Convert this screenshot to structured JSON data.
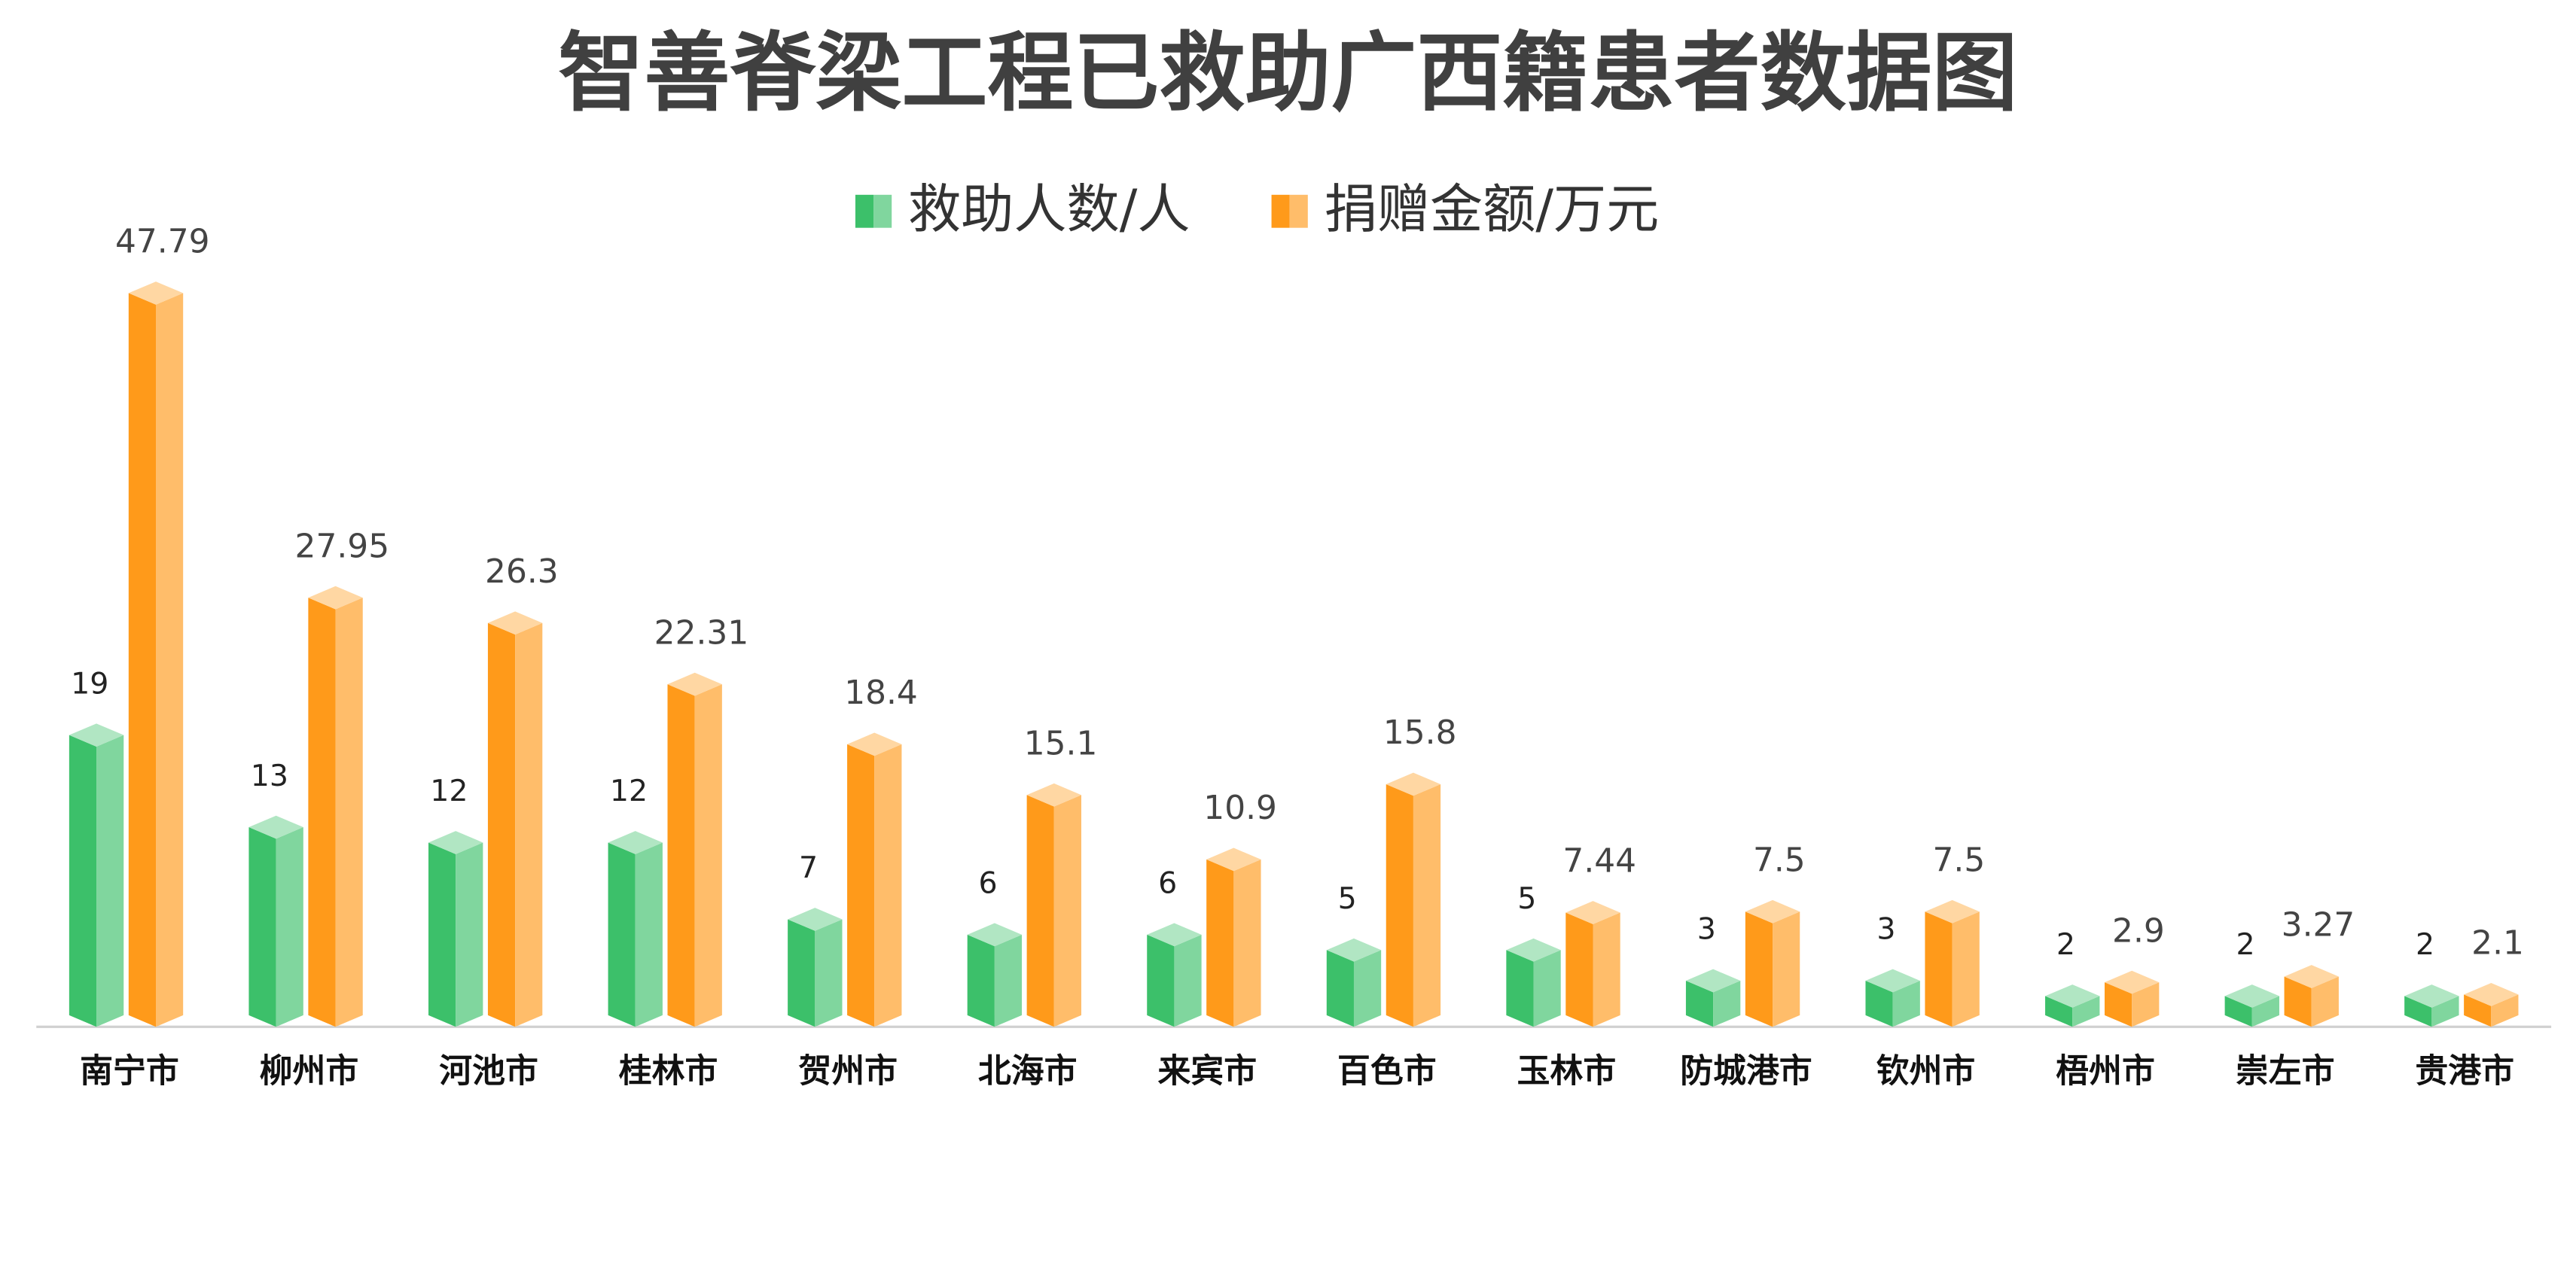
{
  "chart_data": {
    "type": "bar3d",
    "title": "智善脊梁工程已救助广西籍患者数据图",
    "categories": [
      "南宁市",
      "柳州市",
      "河池市",
      "桂林市",
      "贺州市",
      "北海市",
      "来宾市",
      "百色市",
      "玉林市",
      "防城港市",
      "钦州市",
      "梧州市",
      "崇左市",
      "贵港市"
    ],
    "series": [
      {
        "name": "救助人数/人",
        "color": "#3cc06a",
        "values": [
          19,
          13,
          12,
          12,
          7,
          6,
          6,
          5,
          5,
          3,
          3,
          2,
          2,
          2
        ]
      },
      {
        "name": "捐赠金额/万元",
        "color": "#ff9a1a",
        "values": [
          47.79,
          27.95,
          26.3,
          22.31,
          18.4,
          15.1,
          10.9,
          15.8,
          7.44,
          7.5,
          7.5,
          2.9,
          3.27,
          2.1
        ]
      }
    ],
    "ylim": [
      0,
      50
    ],
    "legend": "top"
  }
}
